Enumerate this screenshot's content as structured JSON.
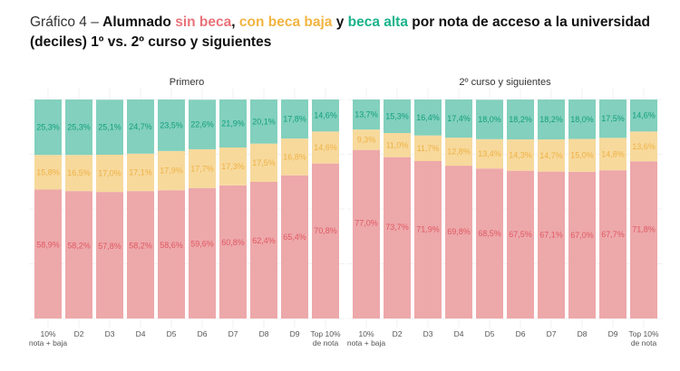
{
  "title": {
    "lead": "Gráfico 4 – ",
    "part1": "Alumnado ",
    "sin_beca": "sin beca",
    "sep1": ", ",
    "con_beca_baja": "con beca baja",
    "sep2": " y ",
    "beca_alta": "beca alta",
    "part2": " por nota de acceso a la universidad (deciles) 1º vs. 2º curso y siguientes"
  },
  "colors": {
    "sin_beca": "#eda8aa",
    "beca_baja": "#f7d99c",
    "beca_alta": "#82d0bd",
    "sin_beca_text": "#e05a63",
    "beca_baja_text": "#eeb245",
    "beca_alta_text": "#14a07c",
    "title_sin_beca": "#e8737a",
    "title_beca_baja": "#f2b441",
    "title_beca_alta": "#1cb38b"
  },
  "chart_data": [
    {
      "type": "bar",
      "stacked": true,
      "title": "Primero",
      "categories": [
        "10% nota + baja",
        "D2",
        "D3",
        "D4",
        "D5",
        "D6",
        "D7",
        "D8",
        "D9",
        "Top 10% de nota"
      ],
      "tick_lines": [
        [
          "10%",
          "nota + baja"
        ],
        [
          "D2"
        ],
        [
          "D3"
        ],
        [
          "D4"
        ],
        [
          "D5"
        ],
        [
          "D6"
        ],
        [
          "D7"
        ],
        [
          "D8"
        ],
        [
          "D9"
        ],
        [
          "Top 10%",
          "de nota"
        ]
      ],
      "ylim": [
        0,
        100
      ],
      "grid": true,
      "series": [
        {
          "name": "sin beca",
          "values": [
            58.9,
            58.2,
            57.8,
            58.2,
            58.6,
            59.6,
            60.8,
            62.4,
            65.4,
            70.8
          ],
          "labels": [
            "58,9%",
            "58,2%",
            "57,8%",
            "58,2%",
            "58,6%",
            "59,6%",
            "60,8%",
            "62,4%",
            "65,4%",
            "70,8%"
          ]
        },
        {
          "name": "con beca baja",
          "values": [
            15.8,
            16.5,
            17.0,
            17.1,
            17.9,
            17.7,
            17.3,
            17.5,
            16.8,
            14.6
          ],
          "labels": [
            "15,8%",
            "16,5%",
            "17,0%",
            "17,1%",
            "17,9%",
            "17,7%",
            "17,3%",
            "17,5%",
            "16,8%",
            "14,6%"
          ]
        },
        {
          "name": "beca alta",
          "values": [
            25.3,
            25.3,
            25.1,
            24.7,
            23.5,
            22.6,
            21.9,
            20.1,
            17.8,
            14.6
          ],
          "labels": [
            "25,3%",
            "25,3%",
            "25,1%",
            "24,7%",
            "23,5%",
            "22,6%",
            "21,9%",
            "20,1%",
            "17,8%",
            "14,6%"
          ]
        }
      ]
    },
    {
      "type": "bar",
      "stacked": true,
      "title": "2º curso y siguientes",
      "categories": [
        "10% nota + baja",
        "D2",
        "D3",
        "D4",
        "D5",
        "D6",
        "D7",
        "D8",
        "D9",
        "Top 10% de nota"
      ],
      "tick_lines": [
        [
          "10%",
          "nota + baja"
        ],
        [
          "D2"
        ],
        [
          "D3"
        ],
        [
          "D4"
        ],
        [
          "D5"
        ],
        [
          "D6"
        ],
        [
          "D7"
        ],
        [
          "D8"
        ],
        [
          "D9"
        ],
        [
          "Top 10%",
          "de nota"
        ]
      ],
      "ylim": [
        0,
        100
      ],
      "grid": true,
      "series": [
        {
          "name": "sin beca",
          "values": [
            77.0,
            73.7,
            71.9,
            69.8,
            68.5,
            67.5,
            67.1,
            67.0,
            67.7,
            71.8
          ],
          "labels": [
            "77,0%",
            "73,7%",
            "71,9%",
            "69,8%",
            "68,5%",
            "67,5%",
            "67,1%",
            "67,0%",
            "67,7%",
            "71,8%"
          ]
        },
        {
          "name": "con beca baja",
          "values": [
            9.3,
            11.0,
            11.7,
            12.8,
            13.4,
            14.3,
            14.7,
            15.0,
            14.8,
            13.6
          ],
          "labels": [
            "9,3%",
            "11,0%",
            "11,7%",
            "12,8%",
            "13,4%",
            "14,3%",
            "14,7%",
            "15,0%",
            "14,8%",
            "13,6%"
          ]
        },
        {
          "name": "beca alta",
          "values": [
            13.7,
            15.3,
            16.4,
            17.4,
            18.0,
            18.2,
            18.2,
            18.0,
            17.5,
            14.6
          ],
          "labels": [
            "13,7%",
            "15,3%",
            "16,4%",
            "17,4%",
            "18,0%",
            "18,2%",
            "18,2%",
            "18,0%",
            "17,5%",
            "14,6%"
          ]
        }
      ]
    }
  ]
}
